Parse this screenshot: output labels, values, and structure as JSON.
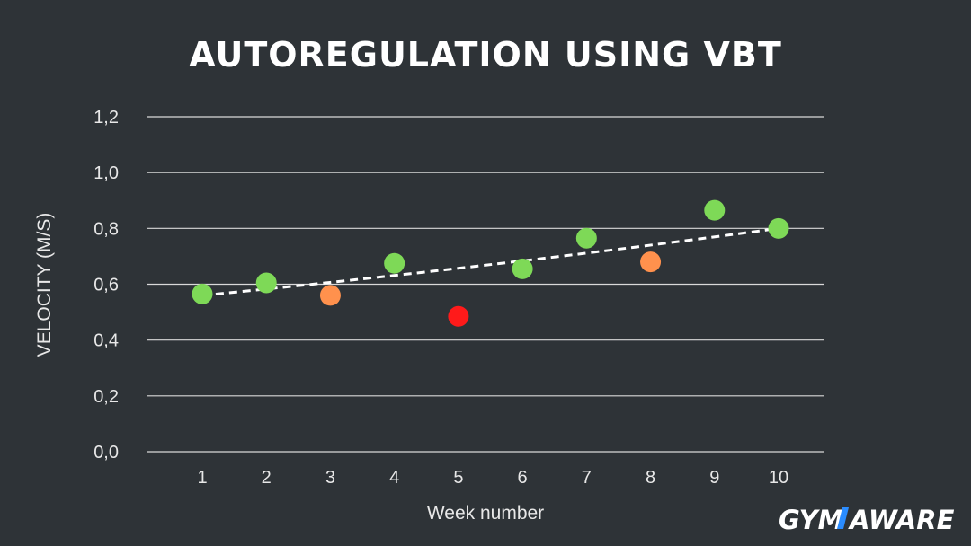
{
  "chart_data": {
    "type": "scatter",
    "title": "AUTOREGULATION USING VBT",
    "xlabel": "Week number",
    "ylabel": "VELOCITY (M/S)",
    "categories": [
      "1",
      "2",
      "3",
      "4",
      "5",
      "6",
      "7",
      "8",
      "9",
      "10"
    ],
    "ylim": [
      0,
      1.2
    ],
    "yticks": [
      "0,0",
      "0,2",
      "0,4",
      "0,6",
      "0,8",
      "1,0",
      "1,2"
    ],
    "grid": true,
    "points": [
      {
        "x": 1,
        "y": 0.565,
        "color": "#7ed957"
      },
      {
        "x": 2,
        "y": 0.605,
        "color": "#7ed957"
      },
      {
        "x": 3,
        "y": 0.56,
        "color": "#ff914d"
      },
      {
        "x": 4,
        "y": 0.675,
        "color": "#7ed957"
      },
      {
        "x": 5,
        "y": 0.485,
        "color": "#ff1a1a"
      },
      {
        "x": 6,
        "y": 0.655,
        "color": "#7ed957"
      },
      {
        "x": 7,
        "y": 0.765,
        "color": "#7ed957"
      },
      {
        "x": 8,
        "y": 0.68,
        "color": "#ff914d"
      },
      {
        "x": 9,
        "y": 0.865,
        "color": "#7ed957"
      },
      {
        "x": 10,
        "y": 0.8,
        "color": "#7ed957"
      }
    ],
    "trendline": {
      "style": "dashed",
      "color": "#ffffff",
      "from": {
        "x": 1,
        "y": 0.56
      },
      "to": {
        "x": 10,
        "y": 0.8
      }
    }
  },
  "branding": {
    "logo": "GYMAWARE"
  }
}
